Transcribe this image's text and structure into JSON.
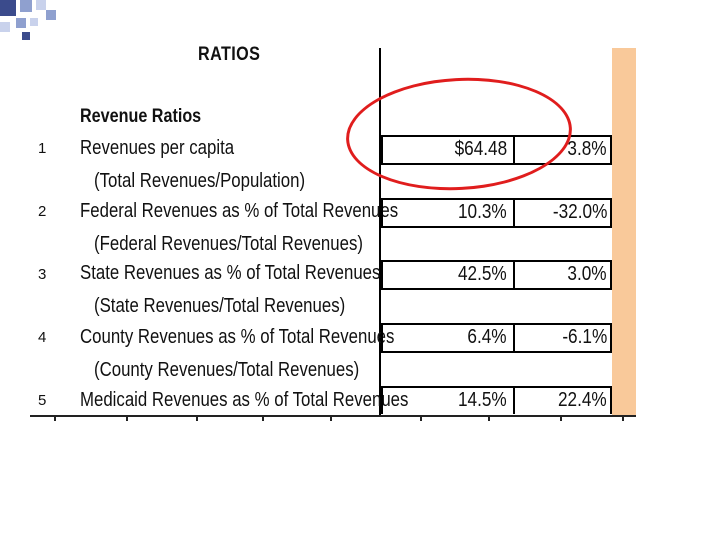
{
  "sheet": {
    "title": "RATIOS",
    "section": "Revenue Ratios",
    "rows": [
      {
        "num": "1",
        "label": "Revenues per capita",
        "sub": "(Total Revenues/Population)",
        "value": "$64.48",
        "change": "3.8%"
      },
      {
        "num": "2",
        "label": "Federal Revenues as % of Total Revenues",
        "sub": "(Federal Revenues/Total Revenues)",
        "value": "10.3%",
        "change": "-32.0%"
      },
      {
        "num": "3",
        "label": "State Revenues as % of Total Revenues",
        "sub": "(State Revenues/Total Revenues)",
        "value": "42.5%",
        "change": "3.0%"
      },
      {
        "num": "4",
        "label": "County Revenues as % of Total Revenues",
        "sub": "(County Revenues/Total Revenues)",
        "value": "6.4%",
        "change": "-6.1%"
      },
      {
        "num": "5",
        "label": "Medicaid Revenues as % of Total Revenues",
        "sub": "",
        "value": "14.5%",
        "change": "22.4%"
      }
    ]
  },
  "colors": {
    "highlight_circle": "#e01d1d",
    "side_band": "#f9c99a",
    "corner_squares": [
      "#3b4b8c",
      "#8fa0cf",
      "#c9d2ec"
    ]
  }
}
